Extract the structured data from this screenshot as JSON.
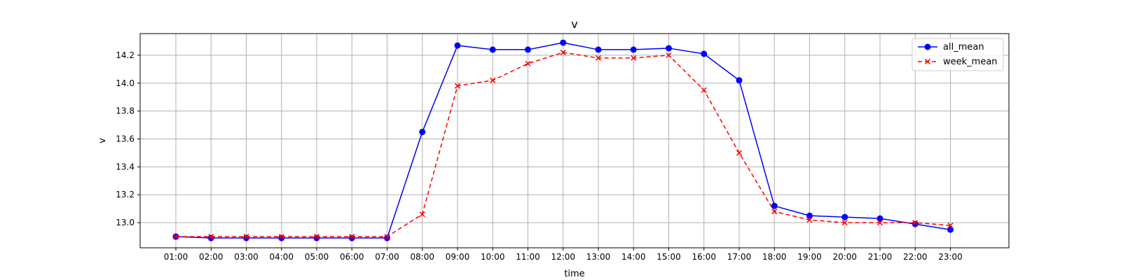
{
  "chart_data": {
    "type": "line",
    "title": "v",
    "xlabel": "time",
    "ylabel": "v",
    "categories": [
      "01:00",
      "02:00",
      "03:00",
      "04:00",
      "05:00",
      "06:00",
      "07:00",
      "08:00",
      "09:00",
      "10:00",
      "11:00",
      "12:00",
      "13:00",
      "14:00",
      "15:00",
      "16:00",
      "17:00",
      "18:00",
      "19:00",
      "20:00",
      "21:00",
      "22:00",
      "23:00"
    ],
    "yticks": [
      "13.0",
      "13.2",
      "13.4",
      "13.6",
      "13.8",
      "14.0",
      "14.2"
    ],
    "ylim": [
      12.82,
      14.355
    ],
    "grid": true,
    "legend_position": "top-right",
    "series": [
      {
        "name": "all_mean",
        "color": "#0000ff",
        "line_style": "solid",
        "marker": "circle",
        "values": [
          12.9,
          12.89,
          12.89,
          12.89,
          12.89,
          12.89,
          12.89,
          13.65,
          14.27,
          14.24,
          14.24,
          14.29,
          14.24,
          14.24,
          14.25,
          14.21,
          14.02,
          13.12,
          13.05,
          13.04,
          13.03,
          12.99,
          12.95
        ]
      },
      {
        "name": "week_mean",
        "color": "#ff0000",
        "line_style": "dashed",
        "marker": "x",
        "values": [
          12.9,
          12.9,
          12.9,
          12.9,
          12.9,
          12.9,
          12.9,
          13.06,
          13.98,
          14.02,
          14.14,
          14.22,
          14.18,
          14.18,
          14.2,
          13.95,
          13.5,
          13.08,
          13.02,
          13.0,
          13.0,
          13.0,
          12.98
        ]
      }
    ]
  }
}
